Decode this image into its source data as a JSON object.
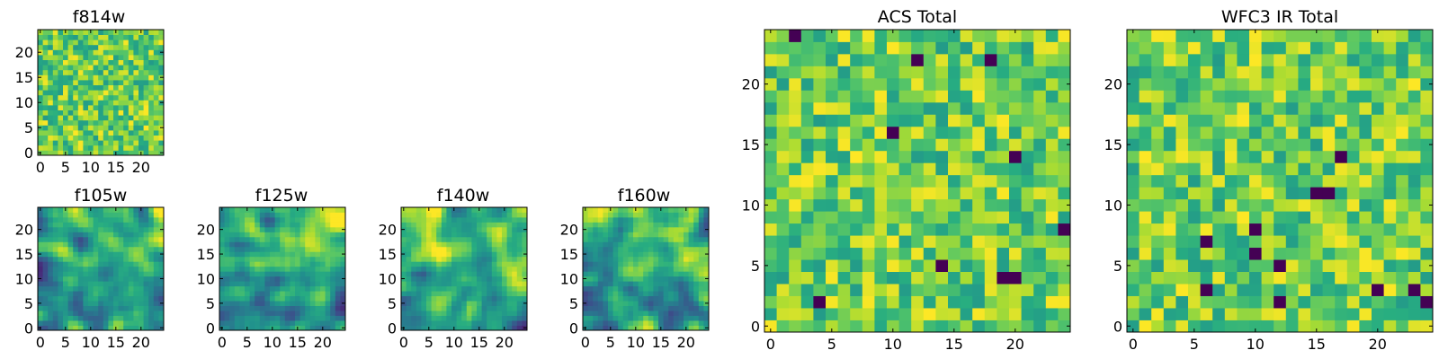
{
  "chart_data": [
    {
      "id": "f814w",
      "type": "heatmap",
      "title": "f814w",
      "colormap": "viridis",
      "x_ticks": [
        "0",
        "5",
        "10",
        "15",
        "20"
      ],
      "y_ticks": [
        "0",
        "5",
        "10",
        "15",
        "20"
      ],
      "grid_size": 25,
      "seed": 11,
      "pattern": "noise",
      "value_range": [
        0.55,
        1.0
      ]
    },
    {
      "id": "f105w",
      "type": "heatmap",
      "title": "f105w",
      "colormap": "viridis",
      "x_ticks": [
        "0",
        "5",
        "10",
        "15",
        "20"
      ],
      "y_ticks": [
        "0",
        "5",
        "10",
        "15",
        "20"
      ],
      "grid_size": 25,
      "seed": 23,
      "pattern": "smooth",
      "value_range": [
        0.1,
        1.0
      ]
    },
    {
      "id": "f125w",
      "type": "heatmap",
      "title": "f125w",
      "colormap": "viridis",
      "x_ticks": [
        "0",
        "5",
        "10",
        "15",
        "20"
      ],
      "y_ticks": [
        "0",
        "5",
        "10",
        "15",
        "20"
      ],
      "grid_size": 25,
      "seed": 37,
      "pattern": "smooth",
      "value_range": [
        0.1,
        1.0
      ]
    },
    {
      "id": "f140w",
      "type": "heatmap",
      "title": "f140w",
      "colormap": "viridis",
      "x_ticks": [
        "0",
        "5",
        "10",
        "15",
        "20"
      ],
      "y_ticks": [
        "0",
        "5",
        "10",
        "15",
        "20"
      ],
      "grid_size": 25,
      "seed": 41,
      "pattern": "smooth",
      "value_range": [
        0.1,
        1.0
      ]
    },
    {
      "id": "f160w",
      "type": "heatmap",
      "title": "f160w",
      "colormap": "viridis",
      "x_ticks": [
        "0",
        "5",
        "10",
        "15",
        "20"
      ],
      "y_ticks": [
        "0",
        "5",
        "10",
        "15",
        "20"
      ],
      "grid_size": 25,
      "seed": 53,
      "pattern": "smooth",
      "value_range": [
        0.05,
        1.0
      ]
    },
    {
      "id": "acs_total",
      "type": "heatmap",
      "title": "ACS Total",
      "colormap": "viridis",
      "x_ticks": [
        "0",
        "5",
        "10",
        "15",
        "20"
      ],
      "y_ticks": [
        "0",
        "5",
        "10",
        "15",
        "20"
      ],
      "grid_size": 25,
      "seed": 67,
      "pattern": "noise",
      "value_range": [
        0.55,
        1.0
      ],
      "dark_cells": [
        [
          2,
          24
        ],
        [
          12,
          22
        ],
        [
          18,
          22
        ],
        [
          10,
          16
        ],
        [
          14,
          5
        ],
        [
          19,
          4
        ],
        [
          20,
          4
        ],
        [
          24,
          8
        ],
        [
          4,
          2
        ],
        [
          20,
          14
        ]
      ]
    },
    {
      "id": "wfc3_ir_total",
      "type": "heatmap",
      "title": "WFC3 IR Total",
      "colormap": "viridis",
      "x_ticks": [
        "0",
        "5",
        "10",
        "15",
        "20"
      ],
      "y_ticks": [
        "0",
        "5",
        "10",
        "15",
        "20"
      ],
      "grid_size": 25,
      "seed": 79,
      "pattern": "noise",
      "value_range": [
        0.55,
        1.0
      ],
      "dark_cells": [
        [
          17,
          14
        ],
        [
          16,
          11
        ],
        [
          15,
          11
        ],
        [
          10,
          8
        ],
        [
          6,
          7
        ],
        [
          10,
          6
        ],
        [
          12,
          5
        ],
        [
          6,
          3
        ],
        [
          12,
          2
        ],
        [
          20,
          3
        ],
        [
          23,
          3
        ],
        [
          24,
          2
        ]
      ]
    }
  ]
}
